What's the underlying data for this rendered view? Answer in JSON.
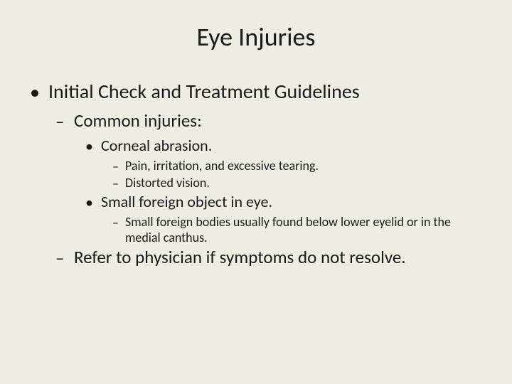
{
  "slide": {
    "background_color": "#eeece3",
    "text_color": "#1a1a1a",
    "title": {
      "text": "Eye Injuries",
      "fontsize": 36
    },
    "l1": {
      "marker": "•",
      "fontsize": 28,
      "items": [
        {
          "text": "Initial Check and Treatment Guidelines"
        }
      ]
    },
    "l2": {
      "marker": "–",
      "fontsize": 25,
      "items": [
        {
          "text": "Common injuries:"
        },
        {
          "text": "Refer to physician if symptoms do not resolve."
        }
      ]
    },
    "l3": {
      "marker": "•",
      "fontsize": 22,
      "items": [
        {
          "text": "Corneal abrasion."
        },
        {
          "text": "Small foreign object in eye."
        }
      ]
    },
    "l4": {
      "marker": "–",
      "fontsize": 18,
      "items": [
        {
          "text": "Pain, irritation, and excessive tearing."
        },
        {
          "text": "Distorted vision."
        },
        {
          "text": "Small foreign bodies usually found below lower eyelid or in the medial canthus."
        }
      ]
    }
  }
}
